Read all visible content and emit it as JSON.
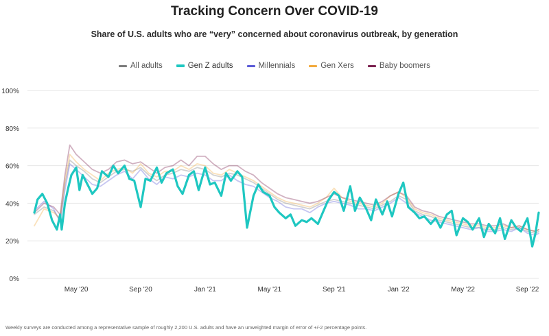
{
  "title": "Tracking Concern Over COVID-19",
  "subtitle": "Share of U.S. adults who are “very” concerned about coronavirus outbreak, by generation",
  "footnote": "Weekly surveys are conducted among a representative sample of roughly 2,200 U.S. adults and have an unweighted margin of error of +/-2 percentage points.",
  "colors": {
    "all_adults": "#7b7b7b",
    "gen_z": "#1ec7c1",
    "millennials": "#5a5ad6",
    "gen_x": "#f2a93b",
    "boomers": "#7a1f4e",
    "grid": "#e6e6e6",
    "axis_text": "#333333"
  },
  "legend": [
    {
      "key": "all_adults",
      "label": "All adults",
      "featured": false
    },
    {
      "key": "gen_z",
      "label": "Gen Z adults",
      "featured": true
    },
    {
      "key": "millennials",
      "label": "Millennials",
      "featured": false
    },
    {
      "key": "gen_x",
      "label": "Gen Xers",
      "featured": false
    },
    {
      "key": "boomers",
      "label": "Baby boomers",
      "featured": false
    }
  ],
  "chart_data": {
    "type": "line",
    "title": "Tracking Concern Over COVID-19",
    "subtitle": "Share of U.S. adults who are “very” concerned about coronavirus outbreak, by generation",
    "xlabel": "",
    "ylabel": "",
    "x_unit": "months since Jan 2020",
    "x_range": [
      1.4,
      32.7
    ],
    "ylim": [
      0,
      100
    ],
    "y_ticks": [
      0,
      20,
      40,
      60,
      80,
      100
    ],
    "y_tick_labels": [
      "0%",
      "20%",
      "40%",
      "60%",
      "80%",
      "100%"
    ],
    "x_ticks": [
      4.0,
      8.0,
      12.0,
      16.0,
      20.0,
      24.0,
      28.0,
      32.0
    ],
    "x_tick_labels": [
      "May '20",
      "Sep '20",
      "Jan '21",
      "May '21",
      "Sep '21",
      "Jan '22",
      "May '22",
      "Sep '22"
    ],
    "grid": true,
    "legend_position": "top-center",
    "series": [
      {
        "key": "all_adults",
        "name": "All adults",
        "highlighted": false,
        "x": [
          1.4,
          2.0,
          2.6,
          3.0,
          3.3,
          3.6,
          4.0,
          4.5,
          5.0,
          5.5,
          6.0,
          6.5,
          7.0,
          7.5,
          8.0,
          8.5,
          9.0,
          9.5,
          10.0,
          10.5,
          11.0,
          11.5,
          12.0,
          12.5,
          13.0,
          13.5,
          14.0,
          14.5,
          15.0,
          15.5,
          16.0,
          16.5,
          17.0,
          17.5,
          18.0,
          18.5,
          19.0,
          19.5,
          20.0,
          20.5,
          21.0,
          21.5,
          22.0,
          22.5,
          23.0,
          23.5,
          24.0,
          24.5,
          25.0,
          25.5,
          26.0,
          26.5,
          27.0,
          27.5,
          28.0,
          28.5,
          29.0,
          29.5,
          30.0,
          30.5,
          31.0,
          31.5,
          32.0,
          32.5,
          32.7
        ],
        "values": [
          34,
          38,
          36,
          31,
          50,
          63,
          60,
          57,
          53,
          51,
          54,
          57,
          58,
          57,
          59,
          55,
          52,
          55,
          56,
          58,
          57,
          59,
          58,
          55,
          54,
          56,
          55,
          53,
          51,
          48,
          45,
          42,
          40,
          39,
          38,
          37,
          39,
          41,
          42,
          41,
          40,
          39,
          38,
          37,
          39,
          41,
          44,
          42,
          36,
          34,
          33,
          31,
          30,
          29,
          28,
          27,
          27,
          26,
          26,
          27,
          26,
          27,
          25,
          24,
          25
        ]
      },
      {
        "key": "millennials",
        "name": "Millennials",
        "highlighted": false,
        "x": [
          1.4,
          2.0,
          2.6,
          3.0,
          3.3,
          3.6,
          4.0,
          4.5,
          5.0,
          5.5,
          6.0,
          6.5,
          7.0,
          7.5,
          8.0,
          8.5,
          9.0,
          9.5,
          10.0,
          10.5,
          11.0,
          11.5,
          12.0,
          12.5,
          13.0,
          13.5,
          14.0,
          14.5,
          15.0,
          15.5,
          16.0,
          16.5,
          17.0,
          17.5,
          18.0,
          18.5,
          19.0,
          19.5,
          20.0,
          20.5,
          21.0,
          21.5,
          22.0,
          22.5,
          23.0,
          23.5,
          24.0,
          24.5,
          25.0,
          25.5,
          26.0,
          26.5,
          27.0,
          27.5,
          28.0,
          28.5,
          29.0,
          29.5,
          30.0,
          30.5,
          31.0,
          31.5,
          32.0,
          32.5,
          32.7
        ],
        "values": [
          36,
          41,
          37,
          30,
          47,
          61,
          58,
          54,
          50,
          49,
          52,
          55,
          57,
          53,
          58,
          53,
          50,
          54,
          53,
          55,
          54,
          56,
          55,
          52,
          52,
          55,
          52,
          50,
          49,
          46,
          43,
          41,
          38,
          37,
          37,
          35,
          38,
          40,
          41,
          40,
          39,
          37,
          37,
          36,
          38,
          40,
          43,
          40,
          35,
          33,
          31,
          30,
          29,
          28,
          27,
          26,
          27,
          25,
          25,
          26,
          25,
          27,
          24,
          23,
          24
        ]
      },
      {
        "key": "gen_x",
        "name": "Gen Xers",
        "highlighted": false,
        "x": [
          1.4,
          2.0,
          2.6,
          3.0,
          3.3,
          3.6,
          4.0,
          4.5,
          5.0,
          5.5,
          6.0,
          6.5,
          7.0,
          7.5,
          8.0,
          8.5,
          9.0,
          9.5,
          10.0,
          10.5,
          11.0,
          11.5,
          12.0,
          12.5,
          13.0,
          13.5,
          14.0,
          14.5,
          15.0,
          15.5,
          16.0,
          16.5,
          17.0,
          17.5,
          18.0,
          18.5,
          19.0,
          19.5,
          20.0,
          20.5,
          21.0,
          21.5,
          22.0,
          22.5,
          23.0,
          23.5,
          24.0,
          24.5,
          25.0,
          25.5,
          26.0,
          26.5,
          27.0,
          27.5,
          28.0,
          28.5,
          29.0,
          29.5,
          30.0,
          30.5,
          31.0,
          31.5,
          32.0,
          32.5,
          32.7
        ],
        "values": [
          28,
          37,
          35,
          32,
          52,
          66,
          62,
          58,
          55,
          52,
          56,
          58,
          59,
          56,
          61,
          56,
          54,
          57,
          57,
          60,
          58,
          61,
          60,
          56,
          55,
          58,
          56,
          54,
          52,
          49,
          46,
          43,
          41,
          40,
          39,
          38,
          40,
          43,
          48,
          43,
          41,
          40,
          39,
          38,
          40,
          44,
          46,
          43,
          37,
          35,
          34,
          32,
          31,
          30,
          29,
          28,
          28,
          27,
          27,
          28,
          27,
          28,
          26,
          25,
          26
        ]
      },
      {
        "key": "boomers",
        "name": "Baby boomers",
        "highlighted": false,
        "x": [
          1.4,
          2.0,
          2.6,
          3.0,
          3.3,
          3.6,
          4.0,
          4.5,
          5.0,
          5.5,
          6.0,
          6.5,
          7.0,
          7.5,
          8.0,
          8.5,
          9.0,
          9.5,
          10.0,
          10.5,
          11.0,
          11.5,
          12.0,
          12.5,
          13.0,
          13.5,
          14.0,
          14.5,
          15.0,
          15.5,
          16.0,
          16.5,
          17.0,
          17.5,
          18.0,
          18.5,
          19.0,
          19.5,
          20.0,
          20.5,
          21.0,
          21.5,
          22.0,
          22.5,
          23.0,
          23.5,
          24.0,
          24.5,
          25.0,
          25.5,
          26.0,
          26.5,
          27.0,
          27.5,
          28.0,
          28.5,
          29.0,
          29.5,
          30.0,
          30.5,
          31.0,
          31.5,
          32.0,
          32.5,
          32.7
        ],
        "values": [
          35,
          40,
          38,
          34,
          55,
          71,
          66,
          62,
          58,
          56,
          58,
          62,
          63,
          61,
          62,
          59,
          56,
          59,
          60,
          63,
          60,
          65,
          65,
          61,
          58,
          60,
          60,
          57,
          55,
          51,
          48,
          45,
          43,
          42,
          41,
          40,
          41,
          43,
          45,
          43,
          42,
          41,
          40,
          39,
          41,
          44,
          46,
          44,
          38,
          36,
          35,
          33,
          32,
          31,
          30,
          29,
          29,
          28,
          28,
          29,
          27,
          28,
          26,
          25,
          26
        ]
      },
      {
        "key": "gen_z",
        "name": "Gen Z adults",
        "highlighted": true,
        "x": [
          1.4,
          1.6,
          1.9,
          2.2,
          2.5,
          2.8,
          3.0,
          3.1,
          3.3,
          3.5,
          3.7,
          4.0,
          4.2,
          4.4,
          4.7,
          5.0,
          5.3,
          5.6,
          6.0,
          6.3,
          6.6,
          7.0,
          7.3,
          7.6,
          8.0,
          8.3,
          8.6,
          9.0,
          9.3,
          9.6,
          10.0,
          10.3,
          10.6,
          11.0,
          11.3,
          11.6,
          12.0,
          12.3,
          12.6,
          13.0,
          13.3,
          13.6,
          14.0,
          14.3,
          14.6,
          15.0,
          15.3,
          15.6,
          16.0,
          16.3,
          16.6,
          17.0,
          17.3,
          17.6,
          18.0,
          18.3,
          18.6,
          19.0,
          19.3,
          19.6,
          20.0,
          20.3,
          20.6,
          21.0,
          21.3,
          21.6,
          22.0,
          22.3,
          22.6,
          23.0,
          23.3,
          23.6,
          24.0,
          24.3,
          24.6,
          25.0,
          25.3,
          25.6,
          26.0,
          26.3,
          26.6,
          27.0,
          27.3,
          27.6,
          28.0,
          28.3,
          28.6,
          29.0,
          29.3,
          29.6,
          30.0,
          30.3,
          30.6,
          31.0,
          31.3,
          31.6,
          32.0,
          32.3,
          32.5,
          32.7
        ],
        "values": [
          35,
          42,
          45,
          40,
          31,
          26,
          34,
          26,
          40,
          48,
          55,
          59,
          47,
          55,
          50,
          45,
          48,
          57,
          54,
          60,
          56,
          60,
          53,
          52,
          38,
          53,
          52,
          59,
          51,
          56,
          58,
          49,
          45,
          55,
          57,
          47,
          59,
          50,
          51,
          44,
          56,
          52,
          57,
          54,
          27,
          44,
          50,
          46,
          44,
          38,
          35,
          32,
          34,
          28,
          31,
          30,
          32,
          29,
          35,
          41,
          46,
          44,
          36,
          49,
          36,
          43,
          37,
          31,
          42,
          34,
          41,
          33,
          45,
          51,
          38,
          35,
          32,
          33,
          29,
          32,
          27,
          34,
          36,
          23,
          32,
          30,
          26,
          32,
          22,
          29,
          24,
          32,
          21,
          31,
          27,
          25,
          32,
          17,
          24,
          35
        ]
      }
    ]
  }
}
